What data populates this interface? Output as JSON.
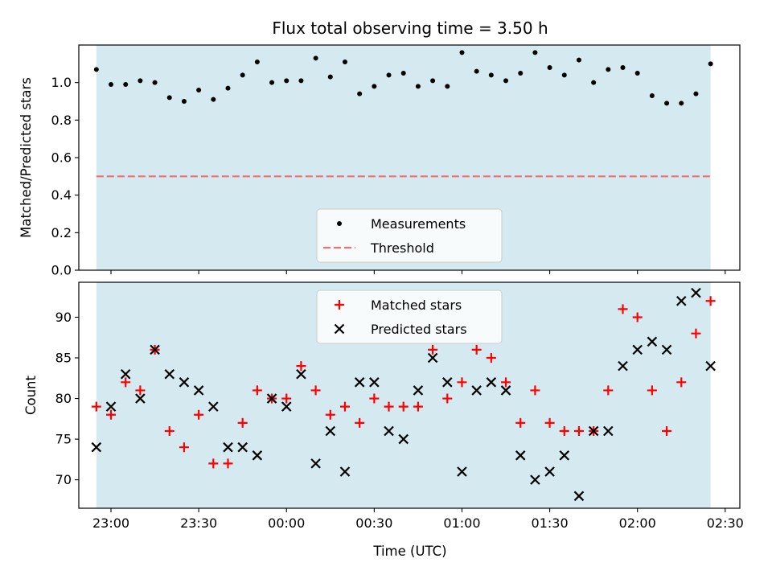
{
  "title": "Flux total observing time = 3.50 h",
  "xlabel": "Time (UTC)",
  "chart_data": [
    {
      "type": "scatter",
      "panel": "top",
      "ylabel": "Matched/Predicted stars",
      "xlim": [
        "22:49",
        "02:35"
      ],
      "ylim": [
        0,
        1.2
      ],
      "x_ticks": [
        "23:00",
        "23:30",
        "00:00",
        "00:30",
        "01:00",
        "01:30",
        "02:00",
        "02:30"
      ],
      "y_ticks": [
        "0.0",
        "0.2",
        "0.4",
        "0.6",
        "0.8",
        "1.0"
      ],
      "shaded_range": [
        "22:55",
        "02:25"
      ],
      "shade_color": "#d4eaf0",
      "legend_position": "lower center",
      "series": [
        {
          "name": "Measurements",
          "marker": "dot",
          "color": "#000000",
          "x": [
            "22:55",
            "22:60",
            "23:05",
            "23:10",
            "23:15",
            "23:20",
            "23:25",
            "23:30",
            "23:35",
            "23:40",
            "23:45",
            "23:50",
            "23:55",
            "00:00",
            "00:05",
            "00:10",
            "00:15",
            "00:20",
            "00:25",
            "00:30",
            "00:35",
            "00:40",
            "00:45",
            "00:50",
            "00:55",
            "01:00",
            "01:05",
            "01:10",
            "01:15",
            "01:20",
            "01:25",
            "01:30",
            "01:35",
            "01:40",
            "01:45",
            "01:50",
            "01:55",
            "02:00",
            "02:05",
            "02:10",
            "02:15",
            "02:20",
            "02:25"
          ],
          "values": [
            1.07,
            0.99,
            0.99,
            1.01,
            1.0,
            0.92,
            0.9,
            0.96,
            0.91,
            0.97,
            1.04,
            1.11,
            1.0,
            1.01,
            1.01,
            1.13,
            1.03,
            1.11,
            0.94,
            0.98,
            1.04,
            1.05,
            0.98,
            1.01,
            0.98,
            1.16,
            1.06,
            1.04,
            1.01,
            1.05,
            1.16,
            1.08,
            1.04,
            1.12,
            1.0,
            1.07,
            1.08,
            1.05,
            0.93,
            0.89,
            0.89,
            0.94,
            1.1
          ]
        },
        {
          "name": "Threshold",
          "style": "dashed",
          "color": "#f07070",
          "x": [
            "22:55",
            "02:25"
          ],
          "values": [
            0.5,
            0.5
          ]
        }
      ]
    },
    {
      "type": "scatter",
      "panel": "bottom",
      "ylabel": "Count",
      "xlim": [
        "22:49",
        "02:35"
      ],
      "ylim": [
        66.5,
        94.3
      ],
      "x_ticks": [
        "23:00",
        "23:30",
        "00:00",
        "00:30",
        "01:00",
        "01:30",
        "02:00",
        "02:30"
      ],
      "y_ticks": [
        "70",
        "75",
        "80",
        "85",
        "90"
      ],
      "shaded_range": [
        "22:55",
        "02:25"
      ],
      "shade_color": "#d4eaf0",
      "legend_position": "upper center",
      "series": [
        {
          "name": "Matched stars",
          "marker": "plus",
          "color": "#ff0000",
          "x": [
            "22:55",
            "23:00",
            "23:05",
            "23:10",
            "23:15",
            "23:20",
            "23:25",
            "23:30",
            "23:35",
            "23:40",
            "23:45",
            "23:50",
            "23:55",
            "00:00",
            "00:05",
            "00:10",
            "00:15",
            "00:20",
            "00:25",
            "00:30",
            "00:35",
            "00:40",
            "00:45",
            "00:50",
            "00:55",
            "01:00",
            "01:05",
            "01:10",
            "01:15",
            "01:20",
            "01:25",
            "01:30",
            "01:35",
            "01:40",
            "01:45",
            "01:50",
            "01:55",
            "02:00",
            "02:05",
            "02:10",
            "02:15",
            "02:20",
            "02:25"
          ],
          "values": [
            79,
            78,
            82,
            81,
            86,
            76,
            74,
            78,
            72,
            72,
            77,
            81,
            80,
            80,
            84,
            81,
            78,
            79,
            77,
            80,
            79,
            79,
            79,
            86,
            80,
            82,
            86,
            85,
            82,
            77,
            81,
            77,
            76,
            76,
            76,
            81,
            91,
            90,
            81,
            76,
            82,
            88,
            92
          ]
        },
        {
          "name": "Predicted stars",
          "marker": "x",
          "color": "#000000",
          "x": [
            "22:55",
            "23:00",
            "23:05",
            "23:10",
            "23:15",
            "23:20",
            "23:25",
            "23:30",
            "23:35",
            "23:40",
            "23:45",
            "23:50",
            "23:55",
            "00:00",
            "00:05",
            "00:10",
            "00:15",
            "00:20",
            "00:25",
            "00:30",
            "00:35",
            "00:40",
            "00:45",
            "00:50",
            "00:55",
            "01:00",
            "01:05",
            "01:10",
            "01:15",
            "01:20",
            "01:25",
            "01:30",
            "01:35",
            "01:40",
            "01:45",
            "01:50",
            "01:55",
            "02:00",
            "02:05",
            "02:10",
            "02:15",
            "02:20",
            "02:25"
          ],
          "values": [
            74,
            79,
            83,
            80,
            86,
            83,
            82,
            81,
            79,
            74,
            74,
            73,
            80,
            79,
            83,
            72,
            76,
            71,
            82,
            82,
            76,
            75,
            81,
            85,
            82,
            71,
            81,
            82,
            81,
            73,
            70,
            71,
            73,
            68,
            76,
            76,
            84,
            86,
            87,
            86,
            92,
            93,
            84
          ]
        }
      ]
    }
  ]
}
